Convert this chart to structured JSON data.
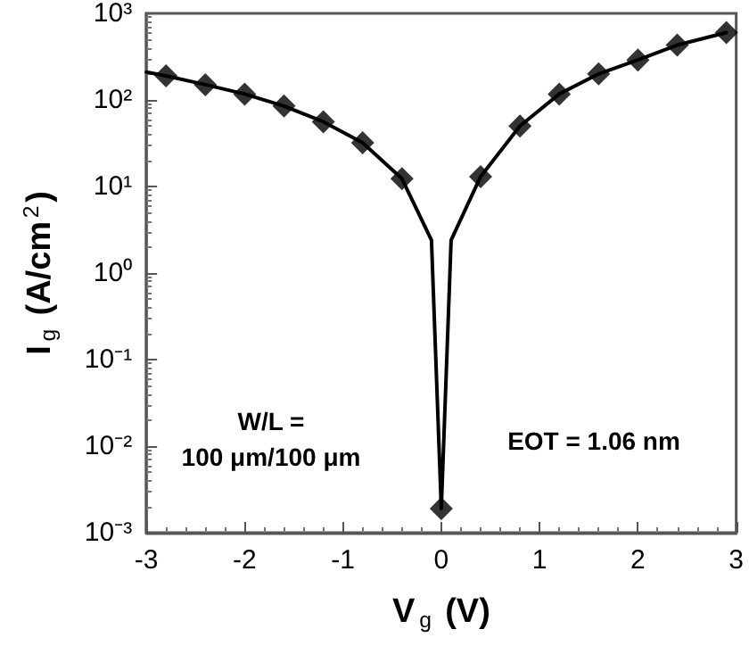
{
  "chart_data": {
    "type": "line",
    "xlabel": "V$_{g}$ (V)",
    "ylabel": "I$_{g}$ (A/cm$^{2}$)",
    "series": [
      {
        "color": "#000000",
        "marker": "none",
        "x": [
          -3,
          -2.8,
          -2.4,
          -2.0,
          -1.6,
          -1.2,
          -0.8,
          -0.4,
          -0.1,
          0,
          0.1,
          0.4,
          0.8,
          1.2,
          1.6,
          2.0,
          2.4,
          2.9
        ],
        "values": [
          210,
          190,
          150,
          117,
          85,
          56,
          32,
          12.3,
          2.4,
          0.0019,
          2.4,
          13,
          50,
          117,
          200,
          290,
          430,
          600
        ]
      },
      {
        "type": "scatter",
        "color": "#000000",
        "marker": "diamond",
        "x": [
          -2.8,
          -2.4,
          -2.0,
          -1.6,
          -1.2,
          -0.8,
          -0.4,
          0,
          0.4,
          0.8,
          1.2,
          1.6,
          2.0,
          2.4,
          2.9
        ],
        "values": [
          190,
          150,
          117,
          85,
          56,
          32,
          12.3,
          0.0019,
          13,
          50,
          117,
          200,
          290,
          430,
          600
        ]
      }
    ],
    "log": "y",
    "xlim": [
      -3,
      3
    ],
    "xticks": [
      -3,
      -2,
      -1,
      0,
      1,
      2,
      3
    ],
    "ylim": [
      0.001,
      1000
    ],
    "yticks": [
      {
        "value": 0.001,
        "label": "10⁻³"
      },
      {
        "value": 0.01,
        "label": "10⁻²"
      },
      {
        "value": 0.1,
        "label": "10⁻¹"
      },
      {
        "value": 1,
        "label": "10⁰"
      },
      {
        "value": 10,
        "label": "10¹"
      },
      {
        "value": 100,
        "label": "10²"
      },
      {
        "value": 1000,
        "label": "10³"
      }
    ],
    "grid": false,
    "line_style": "solid",
    "annotations": [
      "W/L =\n100 μm/100 μm",
      "EOT = 1.06 nm"
    ]
  }
}
